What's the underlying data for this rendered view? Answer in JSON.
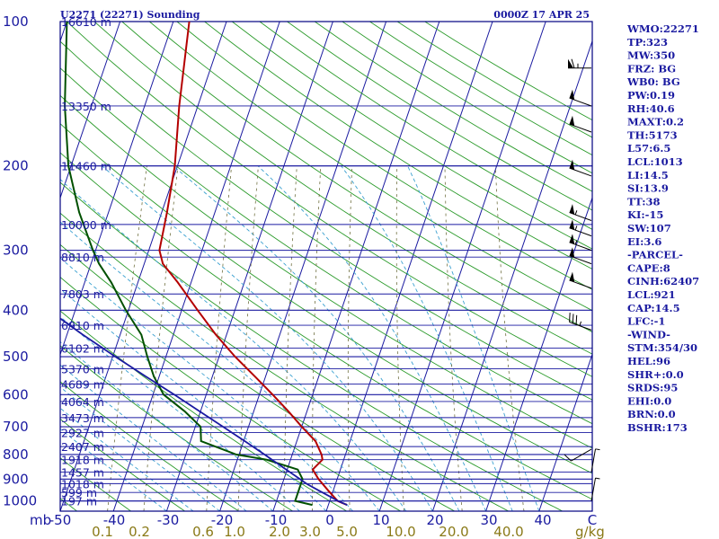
{
  "header": {
    "station_title": "U2271 (22271) Sounding",
    "valid_time": "0000Z 17 APR 25"
  },
  "colors": {
    "frame": "#000080",
    "temperature": "#b40000",
    "dewpoint": "#005000",
    "parcel": "#1a1aa0",
    "dry_adiabat": "#2a9a2a",
    "moist_adiabat": "#3aa0d0",
    "mixing_ratio": "#707040",
    "isotherm": "#1a1aa0",
    "isobar": "#1a1aa0",
    "label_blue": "#1a1aa0",
    "label_olive": "#8a7a18"
  },
  "chart_data": {
    "type": "line",
    "diagram": "skew-T log-P",
    "x_unit": "C",
    "y_unit": "mb",
    "xlim": [
      -50,
      50
    ],
    "ylim": [
      1050,
      100
    ],
    "pressure_labels": [
      "100",
      "200",
      "300",
      "400",
      "500",
      "600",
      "700",
      "800",
      "900",
      "1000"
    ],
    "pressure_unit_label": "mb",
    "temperature_ticks": [
      "-50",
      "-40",
      "-30",
      "-20",
      "-10",
      "0",
      "10",
      "20",
      "30",
      "40",
      "C"
    ],
    "mixing_ratio_labels": [
      "0.1",
      "0.2",
      "0.6",
      "1.0",
      "2.0",
      "3.0",
      "5.0",
      "10.0",
      "20.0",
      "40.0"
    ],
    "mixing_ratio_unit": "g/kg",
    "height_levels": [
      {
        "p": 100,
        "label": "16610 m"
      },
      {
        "p": 150,
        "label": "13350 m"
      },
      {
        "p": 200,
        "label": "11460 m"
      },
      {
        "p": 265,
        "label": "10000 m"
      },
      {
        "p": 310,
        "label": "8810 m"
      },
      {
        "p": 370,
        "label": "7803 m"
      },
      {
        "p": 430,
        "label": "6910 m"
      },
      {
        "p": 480,
        "label": "6102 m"
      },
      {
        "p": 530,
        "label": "5370 m"
      },
      {
        "p": 570,
        "label": "4689 m"
      },
      {
        "p": 620,
        "label": "4064 m"
      },
      {
        "p": 670,
        "label": "3473 m"
      },
      {
        "p": 720,
        "label": "2927 m"
      },
      {
        "p": 770,
        "label": "2407 m"
      },
      {
        "p": 820,
        "label": "1918 m"
      },
      {
        "p": 870,
        "label": "1457 m"
      },
      {
        "p": 920,
        "label": "1018 m"
      },
      {
        "p": 960,
        "label": "599 m"
      },
      {
        "p": 1000,
        "label": "197 m"
      }
    ],
    "series": [
      {
        "name": "temperature",
        "points": [
          [
            1019,
            3.5
          ],
          [
            1000,
            1.5
          ],
          [
            950,
            -1.0
          ],
          [
            900,
            -3.5
          ],
          [
            860,
            -5.2
          ],
          [
            820,
            -4.0
          ],
          [
            800,
            -4.5
          ],
          [
            750,
            -6.5
          ],
          [
            700,
            -10.0
          ],
          [
            650,
            -13.5
          ],
          [
            600,
            -17.5
          ],
          [
            550,
            -22.0
          ],
          [
            500,
            -27.0
          ],
          [
            450,
            -32.0
          ],
          [
            400,
            -37.0
          ],
          [
            350,
            -42.5
          ],
          [
            320,
            -46.5
          ],
          [
            300,
            -48.0
          ],
          [
            250,
            -49.0
          ],
          [
            200,
            -50.5
          ],
          [
            150,
            -53.5
          ],
          [
            100,
            -57.0
          ]
        ]
      },
      {
        "name": "dewpoint",
        "points": [
          [
            1019,
            -3.0
          ],
          [
            1000,
            -6.5
          ],
          [
            950,
            -6.5
          ],
          [
            900,
            -6.5
          ],
          [
            860,
            -8.0
          ],
          [
            820,
            -14.5
          ],
          [
            800,
            -20.5
          ],
          [
            750,
            -28.0
          ],
          [
            700,
            -29.0
          ],
          [
            650,
            -33.0
          ],
          [
            600,
            -38.0
          ],
          [
            550,
            -41.0
          ],
          [
            500,
            -43.5
          ],
          [
            450,
            -46.0
          ],
          [
            400,
            -50.5
          ],
          [
            350,
            -55.0
          ],
          [
            320,
            -58.5
          ],
          [
            300,
            -60.5
          ],
          [
            250,
            -65.5
          ],
          [
            200,
            -70.5
          ],
          [
            150,
            -75.0
          ],
          [
            100,
            -80.0
          ]
        ]
      },
      {
        "name": "parcel",
        "points": [
          [
            1019,
            3.5
          ],
          [
            1000,
            1.6
          ],
          [
            950,
            -2.8
          ],
          [
            921,
            -5.4
          ],
          [
            900,
            -7.0
          ],
          [
            850,
            -11.0
          ],
          [
            800,
            -15.2
          ],
          [
            750,
            -19.8
          ],
          [
            700,
            -24.8
          ],
          [
            650,
            -30.2
          ],
          [
            600,
            -36.0
          ],
          [
            550,
            -42.5
          ],
          [
            500,
            -49.5
          ],
          [
            450,
            -57.0
          ],
          [
            400,
            -65.0
          ],
          [
            350,
            -74.0
          ],
          [
            300,
            -84.0
          ],
          [
            250,
            -95.0
          ],
          [
            200,
            -108.0
          ],
          [
            150,
            -124.0
          ],
          [
            120,
            -136.0
          ]
        ]
      }
    ],
    "wind_barbs": [
      {
        "p": 125,
        "dir": 270,
        "spd": 65
      },
      {
        "p": 150,
        "dir": 290,
        "spd": 50
      },
      {
        "p": 170,
        "dir": 290,
        "spd": 50
      },
      {
        "p": 210,
        "dir": 290,
        "spd": 50
      },
      {
        "p": 260,
        "dir": 290,
        "spd": 55
      },
      {
        "p": 280,
        "dir": 290,
        "spd": 55
      },
      {
        "p": 300,
        "dir": 290,
        "spd": 55
      },
      {
        "p": 320,
        "dir": 290,
        "spd": 50
      },
      {
        "p": 360,
        "dir": 290,
        "spd": 50
      },
      {
        "p": 440,
        "dir": 290,
        "spd": 35
      },
      {
        "p": 780,
        "dir": 240,
        "spd": 10
      },
      {
        "p": 870,
        "dir": 10,
        "spd": 5
      },
      {
        "p": 1000,
        "dir": 10,
        "spd": 5
      }
    ]
  },
  "indices": [
    "WMO:22271",
    "TP:323",
    "MW:350",
    "FRZ: BG",
    "WB0: BG",
    "PW:0.19",
    "RH:40.6",
    "MAXT:0.2",
    "TH:5173",
    "L57:6.5",
    "LCL:1013",
    "LI:14.5",
    "SI:13.9",
    "TT:38",
    "KI:-15",
    "SW:107",
    "EI:3.6",
    "-PARCEL-",
    "CAPE:8",
    "CINH:62407",
    "LCL:921",
    "CAP:14.5",
    "LFC:-1",
    "-WIND-",
    "STM:354/30",
    "HEL:96",
    "SHR+:0.0",
    "SRDS:95",
    "EHI:0.0",
    "BRN:0.0",
    "BSHR:173"
  ]
}
